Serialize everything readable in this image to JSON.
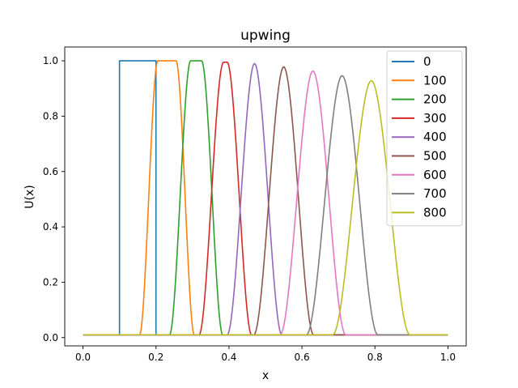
{
  "chart_data": {
    "type": "line",
    "title": "upwing",
    "xlabel": "x",
    "ylabel": "U(x)",
    "xlim": [
      -0.05,
      1.05
    ],
    "ylim": [
      -0.03,
      1.05
    ],
    "xticks": [
      "0.0",
      "0.2",
      "0.4",
      "0.6",
      "0.8",
      "1.0"
    ],
    "yticks": [
      "0.0",
      "0.2",
      "0.4",
      "0.6",
      "0.8",
      "1.0"
    ],
    "grid": false,
    "legend_position": "top-right",
    "baseline": 0.01,
    "series": [
      {
        "name": "0",
        "color": "#1f77b4",
        "shape": "step",
        "x_start": 0.1,
        "x_end": 0.2,
        "peak": 1.0
      },
      {
        "name": "100",
        "color": "#ff7f0e",
        "shape": "pulse",
        "center": 0.23,
        "peak": 1.0,
        "rise": 0.05,
        "flat": 0.05
      },
      {
        "name": "200",
        "color": "#2ca02c",
        "shape": "pulse",
        "center": 0.31,
        "peak": 1.0,
        "rise": 0.058,
        "flat": 0.03
      },
      {
        "name": "300",
        "color": "#d62728",
        "shape": "pulse",
        "center": 0.39,
        "peak": 0.995,
        "rise": 0.067,
        "flat": 0.01
      },
      {
        "name": "400",
        "color": "#9467bd",
        "shape": "pulse",
        "center": 0.47,
        "peak": 0.99,
        "rise": 0.075,
        "flat": 0.0
      },
      {
        "name": "500",
        "color": "#8c564b",
        "shape": "pulse",
        "center": 0.55,
        "peak": 0.978,
        "rise": 0.082,
        "flat": 0.0
      },
      {
        "name": "600",
        "color": "#e377c2",
        "shape": "pulse",
        "center": 0.63,
        "peak": 0.963,
        "rise": 0.09,
        "flat": 0.0
      },
      {
        "name": "700",
        "color": "#7f7f7f",
        "shape": "pulse",
        "center": 0.71,
        "peak": 0.946,
        "rise": 0.098,
        "flat": 0.0
      },
      {
        "name": "800",
        "color": "#bcbd22",
        "shape": "pulse",
        "center": 0.79,
        "peak": 0.928,
        "rise": 0.106,
        "flat": 0.0
      }
    ]
  }
}
